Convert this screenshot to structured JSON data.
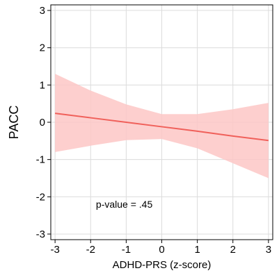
{
  "chart_data": {
    "type": "line",
    "xlabel": "ADHD-PRS (z-score)",
    "ylabel": "PACC",
    "xlim": [
      -3,
      3
    ],
    "ylim": [
      -3,
      3
    ],
    "xticks": [
      "-3",
      "-2",
      "-1",
      "0",
      "1",
      "2",
      "3"
    ],
    "yticks": [
      "-3",
      "-2",
      "-1",
      "0",
      "1",
      "2",
      "3"
    ],
    "grid": true,
    "annotation": "p-value = .45",
    "series": [
      {
        "x": [
          -3,
          -2,
          -1,
          0,
          1,
          2,
          3
        ],
        "y": [
          0.24,
          0.12,
          0.0,
          -0.12,
          -0.24,
          -0.37,
          -0.49
        ],
        "ci_upper": [
          1.3,
          0.85,
          0.48,
          0.22,
          0.22,
          0.35,
          0.52
        ],
        "ci_lower": [
          -0.8,
          -0.63,
          -0.48,
          -0.45,
          -0.7,
          -1.1,
          -1.5
        ],
        "color": "#f0605a",
        "band_color": "#fdc7c5"
      }
    ]
  }
}
